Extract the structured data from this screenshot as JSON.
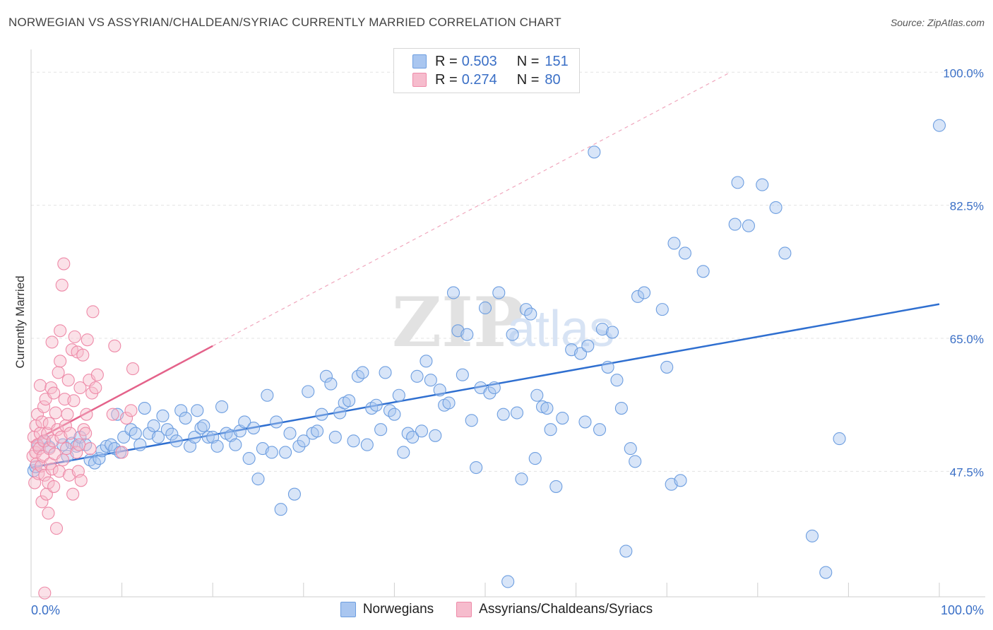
{
  "title": "NORWEGIAN VS ASSYRIAN/CHALDEAN/SYRIAC CURRENTLY MARRIED CORRELATION CHART",
  "source": "Source: ZipAtlas.com",
  "watermark": {
    "zip": "ZIP",
    "atlas": "atlas"
  },
  "legend": {
    "rows": [
      {
        "r_label": "R =",
        "r_value": "0.503",
        "n_label": "N =",
        "n_value": "151",
        "color": "#6d9ee0"
      },
      {
        "r_label": "R =",
        "r_value": "0.274",
        "n_label": "N =",
        "n_value": "80",
        "color": "#ee8aa8"
      }
    ]
  },
  "bottom_legend": [
    {
      "label": "Norwegians",
      "color": "#a9c6f0"
    },
    {
      "label": "Assyrians/Chaldeans/Syriacs",
      "color": "#f6bccd"
    }
  ],
  "chart_data": {
    "type": "scatter",
    "title": "NORWEGIAN VS ASSYRIAN/CHALDEAN/SYRIAC CURRENTLY MARRIED CORRELATION CHART",
    "xlabel": "",
    "ylabel": "Currently Married",
    "xlim": [
      0,
      100
    ],
    "ylim": [
      31,
      103
    ],
    "x_tick_labels": [
      {
        "value": 0,
        "label": "0.0%"
      },
      {
        "value": 100,
        "label": "100.0%"
      }
    ],
    "y_tick_labels": [
      {
        "value": 47.5,
        "label": "47.5%"
      },
      {
        "value": 65.0,
        "label": "65.0%"
      },
      {
        "value": 82.5,
        "label": "82.5%"
      },
      {
        "value": 100.0,
        "label": "100.0%"
      }
    ],
    "legend_position": "top-center",
    "series": [
      {
        "name": "Norwegians",
        "color": "#6d9ee0",
        "fill": "#a9c6f0",
        "trend": {
          "x": [
            0,
            100
          ],
          "y": [
            48.0,
            69.5
          ],
          "style": "solid"
        },
        "points": [
          [
            0.3,
            47.6
          ],
          [
            0.5,
            48.1
          ],
          [
            0.8,
            50.8
          ],
          [
            1.5,
            51.5
          ],
          [
            2.0,
            50.7
          ],
          [
            3.5,
            51.0
          ],
          [
            4.0,
            49.5
          ],
          [
            4.5,
            51.2
          ],
          [
            5.0,
            50.8
          ],
          [
            5.4,
            52.0
          ],
          [
            6.0,
            51.0
          ],
          [
            6.5,
            49.0
          ],
          [
            7.0,
            48.6
          ],
          [
            7.5,
            49.2
          ],
          [
            7.8,
            50.2
          ],
          [
            8.3,
            50.8
          ],
          [
            8.8,
            51.0
          ],
          [
            9.2,
            50.5
          ],
          [
            9.5,
            55.0
          ],
          [
            9.8,
            50.0
          ],
          [
            10.2,
            52.0
          ],
          [
            11.0,
            53.0
          ],
          [
            11.5,
            52.5
          ],
          [
            12.0,
            51.0
          ],
          [
            12.5,
            55.8
          ],
          [
            13.0,
            52.5
          ],
          [
            13.5,
            53.5
          ],
          [
            14.0,
            52.0
          ],
          [
            14.5,
            54.8
          ],
          [
            15.0,
            53.0
          ],
          [
            15.5,
            52.4
          ],
          [
            16.0,
            51.5
          ],
          [
            16.5,
            55.5
          ],
          [
            17.0,
            54.5
          ],
          [
            17.5,
            50.8
          ],
          [
            18.0,
            52.0
          ],
          [
            18.3,
            55.5
          ],
          [
            18.7,
            53.2
          ],
          [
            19.0,
            53.5
          ],
          [
            19.5,
            52.0
          ],
          [
            20.0,
            52.0
          ],
          [
            20.5,
            50.8
          ],
          [
            21.0,
            56.0
          ],
          [
            21.5,
            52.5
          ],
          [
            22.0,
            52.2
          ],
          [
            22.5,
            51.0
          ],
          [
            23.0,
            52.8
          ],
          [
            23.5,
            54.0
          ],
          [
            24.0,
            49.2
          ],
          [
            24.5,
            53.2
          ],
          [
            25.0,
            46.5
          ],
          [
            25.5,
            50.5
          ],
          [
            26.0,
            57.5
          ],
          [
            26.5,
            50.0
          ],
          [
            27.0,
            54.0
          ],
          [
            27.5,
            42.5
          ],
          [
            28.0,
            50.0
          ],
          [
            28.5,
            52.5
          ],
          [
            29.0,
            44.5
          ],
          [
            29.5,
            50.8
          ],
          [
            30.0,
            51.5
          ],
          [
            30.5,
            58.0
          ],
          [
            31.0,
            52.5
          ],
          [
            31.5,
            52.8
          ],
          [
            32.0,
            55.0
          ],
          [
            32.5,
            60.0
          ],
          [
            33.0,
            59.0
          ],
          [
            33.5,
            52.0
          ],
          [
            34.0,
            55.2
          ],
          [
            34.5,
            56.5
          ],
          [
            35.0,
            56.8
          ],
          [
            35.5,
            51.5
          ],
          [
            36.0,
            60.0
          ],
          [
            36.5,
            60.5
          ],
          [
            37.0,
            51.0
          ],
          [
            37.5,
            55.8
          ],
          [
            38.0,
            56.2
          ],
          [
            38.5,
            53.0
          ],
          [
            39.0,
            60.5
          ],
          [
            39.5,
            55.5
          ],
          [
            40.0,
            55.0
          ],
          [
            40.5,
            57.5
          ],
          [
            41.0,
            50.0
          ],
          [
            41.5,
            52.5
          ],
          [
            42.0,
            52.0
          ],
          [
            42.5,
            60.0
          ],
          [
            43.0,
            52.8
          ],
          [
            43.5,
            62.0
          ],
          [
            44.0,
            59.5
          ],
          [
            44.5,
            52.2
          ],
          [
            45.0,
            58.2
          ],
          [
            45.5,
            56.2
          ],
          [
            46.0,
            56.5
          ],
          [
            46.5,
            71.0
          ],
          [
            47.0,
            66.0
          ],
          [
            47.5,
            60.2
          ],
          [
            48.0,
            65.5
          ],
          [
            48.5,
            54.2
          ],
          [
            49.0,
            48.0
          ],
          [
            49.5,
            58.5
          ],
          [
            50.0,
            69.0
          ],
          [
            50.5,
            57.8
          ],
          [
            51.0,
            58.5
          ],
          [
            51.5,
            71.0
          ],
          [
            52.0,
            55.0
          ],
          [
            52.5,
            33.0
          ],
          [
            53.0,
            65.5
          ],
          [
            53.5,
            55.2
          ],
          [
            54.0,
            46.5
          ],
          [
            54.5,
            68.8
          ],
          [
            55.0,
            68.2
          ],
          [
            55.5,
            49.2
          ],
          [
            55.7,
            57.5
          ],
          [
            56.3,
            56.0
          ],
          [
            56.8,
            55.8
          ],
          [
            57.2,
            53.0
          ],
          [
            57.8,
            45.5
          ],
          [
            58.5,
            54.5
          ],
          [
            59.5,
            63.5
          ],
          [
            60.5,
            63.0
          ],
          [
            61.0,
            54.0
          ],
          [
            61.3,
            64.0
          ],
          [
            62.0,
            89.5
          ],
          [
            62.6,
            53.0
          ],
          [
            62.9,
            66.2
          ],
          [
            63.5,
            61.2
          ],
          [
            64.0,
            65.8
          ],
          [
            64.5,
            59.5
          ],
          [
            65.0,
            55.8
          ],
          [
            65.5,
            37.0
          ],
          [
            66.0,
            50.5
          ],
          [
            66.5,
            48.8
          ],
          [
            66.8,
            70.5
          ],
          [
            67.5,
            71.0
          ],
          [
            69.5,
            68.8
          ],
          [
            70.0,
            61.2
          ],
          [
            70.5,
            45.8
          ],
          [
            70.8,
            77.5
          ],
          [
            71.5,
            46.3
          ],
          [
            72.0,
            76.2
          ],
          [
            74.0,
            73.8
          ],
          [
            77.5,
            80.0
          ],
          [
            77.8,
            85.5
          ],
          [
            79.0,
            79.8
          ],
          [
            80.5,
            85.2
          ],
          [
            82.0,
            82.2
          ],
          [
            83.0,
            76.2
          ],
          [
            86.0,
            39.0
          ],
          [
            87.5,
            34.2
          ],
          [
            89.0,
            51.8
          ],
          [
            100.0,
            93.0
          ]
        ]
      },
      {
        "name": "Assyrians/Chaldeans/Syriacs",
        "color": "#ee8aa8",
        "fill": "#f6bccd",
        "trend": {
          "x": [
            0,
            20
          ],
          "y": [
            51.3,
            64.0
          ],
          "style": "solid",
          "extension": {
            "x": [
              20,
              77
            ],
            "y": [
              64.0,
              100.0
            ],
            "style": "dashed"
          }
        },
        "points": [
          [
            0.2,
            49.5
          ],
          [
            0.3,
            52.0
          ],
          [
            0.4,
            46.0
          ],
          [
            0.5,
            50.0
          ],
          [
            0.5,
            53.5
          ],
          [
            0.6,
            48.5
          ],
          [
            0.7,
            51.0
          ],
          [
            0.7,
            55.0
          ],
          [
            0.8,
            47.2
          ],
          [
            0.9,
            50.5
          ],
          [
            1.0,
            52.5
          ],
          [
            1.0,
            58.8
          ],
          [
            1.1,
            48.2
          ],
          [
            1.2,
            54.0
          ],
          [
            1.2,
            43.5
          ],
          [
            1.3,
            49.5
          ],
          [
            1.4,
            56.0
          ],
          [
            1.4,
            51.5
          ],
          [
            1.5,
            47.0
          ],
          [
            1.6,
            57.0
          ],
          [
            1.7,
            44.5
          ],
          [
            1.8,
            52.5
          ],
          [
            1.9,
            46.0
          ],
          [
            1.9,
            42.0
          ],
          [
            2.0,
            50.5
          ],
          [
            2.0,
            53.8
          ],
          [
            2.1,
            48.5
          ],
          [
            2.2,
            58.5
          ],
          [
            2.3,
            47.8
          ],
          [
            2.3,
            64.5
          ],
          [
            2.4,
            51.5
          ],
          [
            2.5,
            45.5
          ],
          [
            2.5,
            57.8
          ],
          [
            2.6,
            49.8
          ],
          [
            2.7,
            55.2
          ],
          [
            2.8,
            40.0
          ],
          [
            2.9,
            53.0
          ],
          [
            3.0,
            60.5
          ],
          [
            3.1,
            47.5
          ],
          [
            3.2,
            62.0
          ],
          [
            3.2,
            66.0
          ],
          [
            3.3,
            52.0
          ],
          [
            3.4,
            72.0
          ],
          [
            3.5,
            49.0
          ],
          [
            3.6,
            74.8
          ],
          [
            3.7,
            57.0
          ],
          [
            3.8,
            53.5
          ],
          [
            3.9,
            50.5
          ],
          [
            4.0,
            55.0
          ],
          [
            4.1,
            59.5
          ],
          [
            4.2,
            47.0
          ],
          [
            4.3,
            52.5
          ],
          [
            4.5,
            63.5
          ],
          [
            4.6,
            44.5
          ],
          [
            4.7,
            56.8
          ],
          [
            4.8,
            65.2
          ],
          [
            5.0,
            50.0
          ],
          [
            5.1,
            63.2
          ],
          [
            5.2,
            47.5
          ],
          [
            5.3,
            51.0
          ],
          [
            5.4,
            58.5
          ],
          [
            5.5,
            46.3
          ],
          [
            5.7,
            62.8
          ],
          [
            5.8,
            53.0
          ],
          [
            6.0,
            52.5
          ],
          [
            6.1,
            55.0
          ],
          [
            6.2,
            64.8
          ],
          [
            6.4,
            59.5
          ],
          [
            6.5,
            50.5
          ],
          [
            6.7,
            57.8
          ],
          [
            6.8,
            68.5
          ],
          [
            7.1,
            58.5
          ],
          [
            7.3,
            60.2
          ],
          [
            9.0,
            55.0
          ],
          [
            9.2,
            64.0
          ],
          [
            10.0,
            50.0
          ],
          [
            10.5,
            54.5
          ],
          [
            11.0,
            55.5
          ],
          [
            11.2,
            61.0
          ],
          [
            1.5,
            31.5
          ]
        ]
      }
    ]
  }
}
